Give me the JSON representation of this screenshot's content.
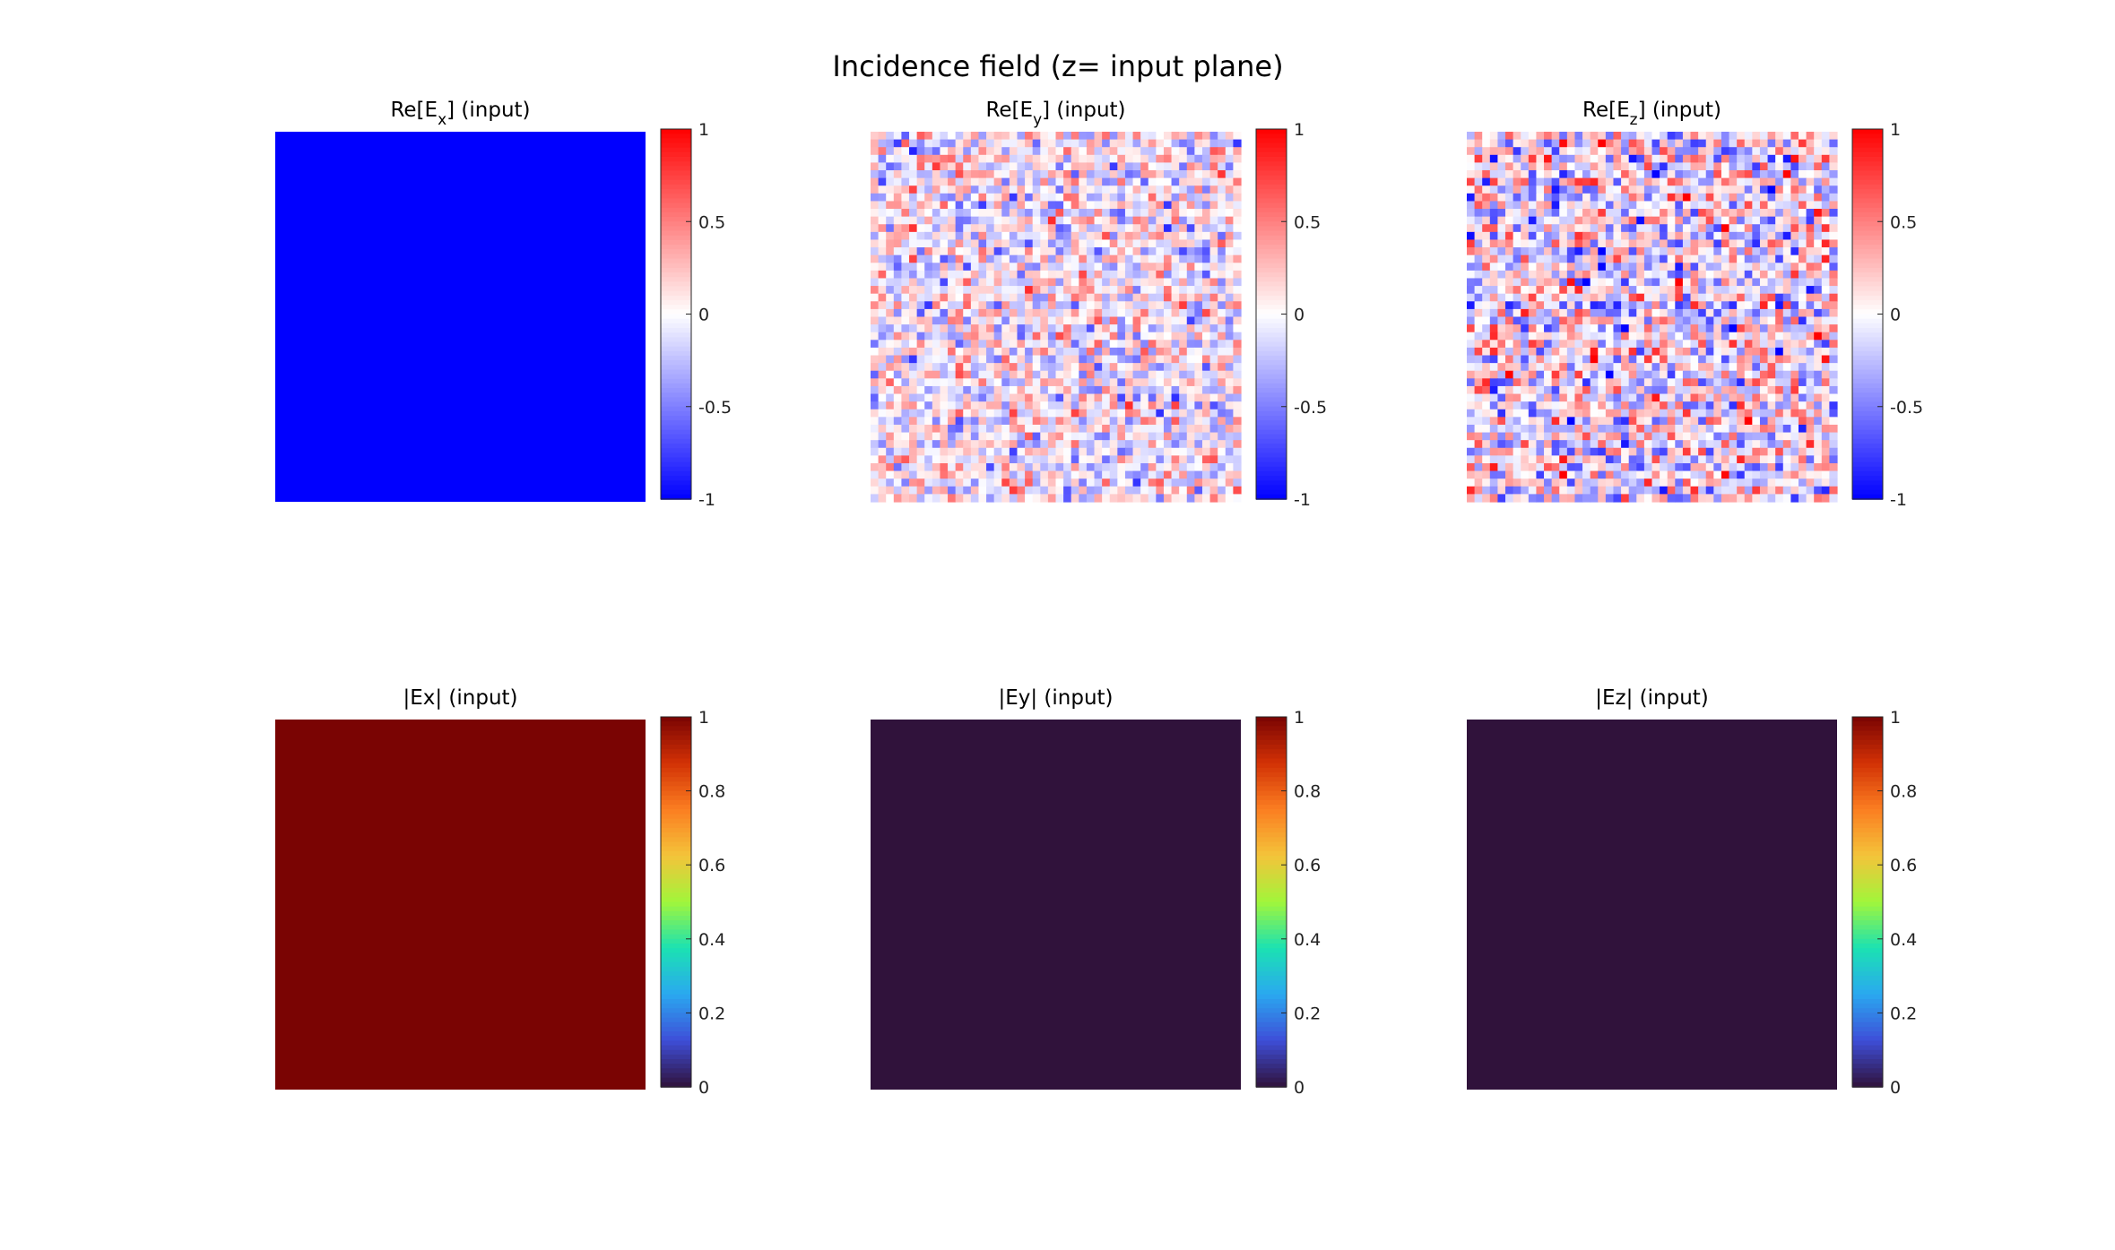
{
  "figure": {
    "title": "Incidence field (z= input plane)"
  },
  "chart_data": [
    {
      "type": "heatmap",
      "title_main": "Re[E",
      "title_sub": "x",
      "title_tail": "] (input)",
      "colormap": "blue-white-red",
      "clim": [
        -1,
        1
      ],
      "field": "uniform",
      "value": -1,
      "colorbar_ticks": [
        "1",
        "0.5",
        "0",
        "-0.5",
        "-1"
      ],
      "colorbar_tick_values": [
        1,
        0.5,
        0,
        -0.5,
        -1
      ]
    },
    {
      "type": "heatmap",
      "title_main": "Re[E",
      "title_sub": "y",
      "title_tail": "] (input)",
      "colormap": "blue-white-red",
      "clim": [
        -1,
        1
      ],
      "field": "random",
      "grid": [
        48,
        48
      ],
      "amplitude": 0.55,
      "colorbar_ticks": [
        "1",
        "0.5",
        "0",
        "-0.5",
        "-1"
      ],
      "colorbar_tick_values": [
        1,
        0.5,
        0,
        -0.5,
        -1
      ]
    },
    {
      "type": "heatmap",
      "title_main": "Re[E",
      "title_sub": "z",
      "title_tail": "] (input)",
      "colormap": "blue-white-red",
      "clim": [
        -1,
        1
      ],
      "field": "random",
      "grid": [
        48,
        48
      ],
      "amplitude": 0.75,
      "colorbar_ticks": [
        "1",
        "0.5",
        "0",
        "-0.5",
        "-1"
      ],
      "colorbar_tick_values": [
        1,
        0.5,
        0,
        -0.5,
        -1
      ]
    },
    {
      "type": "heatmap",
      "title_main": "|Ex| (input)",
      "title_sub": "",
      "title_tail": "",
      "colormap": "turbo",
      "clim": [
        0,
        1
      ],
      "field": "uniform",
      "value": 1,
      "colorbar_ticks": [
        "1",
        "0.8",
        "0.6",
        "0.4",
        "0.2",
        "0"
      ],
      "colorbar_tick_values": [
        1,
        0.8,
        0.6,
        0.4,
        0.2,
        0
      ]
    },
    {
      "type": "heatmap",
      "title_main": "|Ey| (input)",
      "title_sub": "",
      "title_tail": "",
      "colormap": "turbo",
      "clim": [
        0,
        1
      ],
      "field": "uniform",
      "value": 0,
      "colorbar_ticks": [
        "1",
        "0.8",
        "0.6",
        "0.4",
        "0.2",
        "0"
      ],
      "colorbar_tick_values": [
        1,
        0.8,
        0.6,
        0.4,
        0.2,
        0
      ]
    },
    {
      "type": "heatmap",
      "title_main": "|Ez| (input)",
      "title_sub": "",
      "title_tail": "",
      "colormap": "turbo",
      "clim": [
        0,
        1
      ],
      "field": "uniform",
      "value": 0,
      "colorbar_ticks": [
        "1",
        "0.8",
        "0.6",
        "0.4",
        "0.2",
        "0"
      ],
      "colorbar_tick_values": [
        1,
        0.8,
        0.6,
        0.4,
        0.2,
        0
      ]
    }
  ],
  "colors": {
    "bwr_low": "#0000ff",
    "bwr_mid": "#ffffff",
    "bwr_high": "#ff0000",
    "turbo_stops": [
      "#30123b",
      "#3e4ed8",
      "#2aa8f0",
      "#1be2b2",
      "#a2f63a",
      "#f4c33a",
      "#fb7e21",
      "#d23105",
      "#7a0403"
    ]
  }
}
